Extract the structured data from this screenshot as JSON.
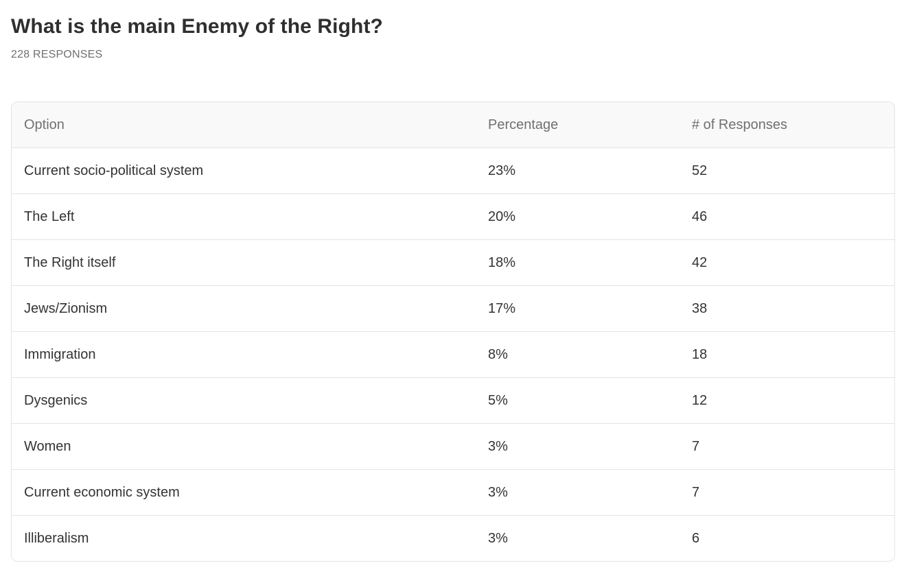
{
  "poll": {
    "title": "What is the main Enemy of the Right?",
    "responses_label": "228 RESPONSES"
  },
  "table": {
    "headers": {
      "option": "Option",
      "percentage": "Percentage",
      "responses": "# of Responses"
    },
    "rows": [
      {
        "option": "Current socio-political system",
        "percentage": "23%",
        "responses": "52"
      },
      {
        "option": "The Left",
        "percentage": "20%",
        "responses": "46"
      },
      {
        "option": "The Right itself",
        "percentage": "18%",
        "responses": "42"
      },
      {
        "option": "Jews/Zionism",
        "percentage": "17%",
        "responses": "38"
      },
      {
        "option": "Immigration",
        "percentage": "8%",
        "responses": "18"
      },
      {
        "option": "Dysgenics",
        "percentage": "5%",
        "responses": "12"
      },
      {
        "option": "Women",
        "percentage": "3%",
        "responses": "7"
      },
      {
        "option": "Current economic system",
        "percentage": "3%",
        "responses": "7"
      },
      {
        "option": "Illiberalism",
        "percentage": "3%",
        "responses": "6"
      }
    ]
  }
}
